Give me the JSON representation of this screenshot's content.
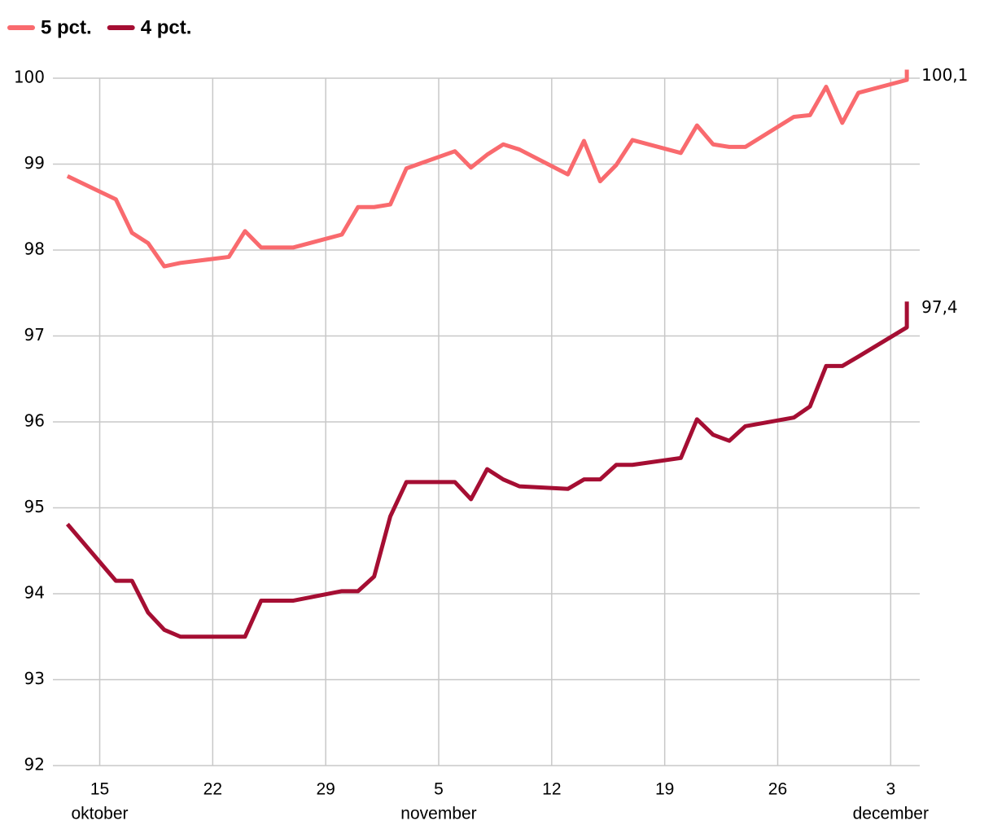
{
  "chart_data": {
    "type": "line",
    "x": [
      13,
      16,
      17,
      18,
      19,
      20,
      23,
      24,
      25,
      27,
      30,
      31,
      32,
      33,
      34,
      37,
      38,
      39,
      40,
      41,
      44,
      45,
      46,
      47,
      48,
      51,
      52,
      53,
      54,
      55,
      58,
      59,
      60,
      61,
      62,
      65,
      65
    ],
    "series": [
      {
        "name": "5 pct.",
        "color": "#f96a6e",
        "x": [
          13,
          16,
          17,
          18,
          19,
          20,
          23,
          24,
          25,
          27,
          30,
          31,
          32,
          33,
          34,
          37,
          38,
          39,
          40,
          41,
          44,
          45,
          46,
          47,
          48,
          51,
          52,
          53,
          54,
          55,
          58,
          59,
          60,
          61,
          62,
          65,
          65
        ],
        "values": [
          98.86,
          98.59,
          98.2,
          98.08,
          97.81,
          97.85,
          97.92,
          98.22,
          98.03,
          98.03,
          98.18,
          98.5,
          98.5,
          98.53,
          98.95,
          99.15,
          98.96,
          99.11,
          99.23,
          99.17,
          98.88,
          99.27,
          98.8,
          98.99,
          99.28,
          99.13,
          99.45,
          99.23,
          99.2,
          99.2,
          99.55,
          99.57,
          99.9,
          99.48,
          99.83,
          99.98,
          100.1
        ],
        "value_labels": [
          null,
          null,
          null,
          null,
          null,
          null,
          null,
          null,
          null,
          null,
          null,
          null,
          null,
          null,
          null,
          null,
          null,
          null,
          null,
          null,
          null,
          null,
          null,
          null,
          null,
          null,
          null,
          null,
          null,
          null,
          null,
          null,
          null,
          null,
          null,
          null,
          "100,1"
        ]
      },
      {
        "name": "4 pct.",
        "color": "#a50e33",
        "x": [
          13,
          16,
          17,
          18,
          19,
          20,
          24,
          25,
          27,
          30,
          31,
          32,
          33,
          34,
          37,
          38,
          39,
          40,
          41,
          44,
          45,
          46,
          47,
          48,
          51,
          52,
          53,
          54,
          55,
          58,
          59,
          60,
          61,
          62,
          65,
          65
        ],
        "values": [
          94.81,
          94.15,
          94.15,
          93.78,
          93.58,
          93.5,
          93.5,
          93.92,
          93.92,
          94.03,
          94.03,
          94.2,
          94.9,
          95.3,
          95.3,
          95.1,
          95.45,
          95.33,
          95.25,
          95.22,
          95.33,
          95.33,
          95.5,
          95.5,
          95.58,
          96.03,
          95.85,
          95.78,
          95.95,
          96.05,
          96.18,
          96.65,
          96.65,
          96.76,
          97.1,
          97.4
        ],
        "value_labels": [
          null,
          null,
          null,
          null,
          null,
          null,
          null,
          null,
          null,
          null,
          null,
          null,
          null,
          null,
          null,
          null,
          null,
          null,
          null,
          null,
          null,
          null,
          null,
          null,
          null,
          null,
          null,
          null,
          null,
          null,
          null,
          null,
          null,
          null,
          null,
          "97,4"
        ]
      }
    ],
    "xlim": [
      12.1,
      65.8
    ],
    "xticks": [
      15,
      22,
      29,
      {
        "value": 36,
        "label": "5"
      },
      {
        "value": 43,
        "label": "12"
      },
      {
        "value": 50,
        "label": "19"
      },
      {
        "value": 57,
        "label": "26"
      },
      {
        "value": 64,
        "label": "3"
      }
    ],
    "xtick_sublabels": [
      {
        "value": 15,
        "label": "oktober"
      },
      {
        "value": 36,
        "label": "november"
      },
      {
        "value": 64,
        "label": "december"
      }
    ],
    "ylim": [
      92,
      100
    ],
    "yticks": [
      92,
      93,
      94,
      95,
      96,
      97,
      98,
      99,
      100
    ],
    "grid": true,
    "legend": "top-left"
  }
}
